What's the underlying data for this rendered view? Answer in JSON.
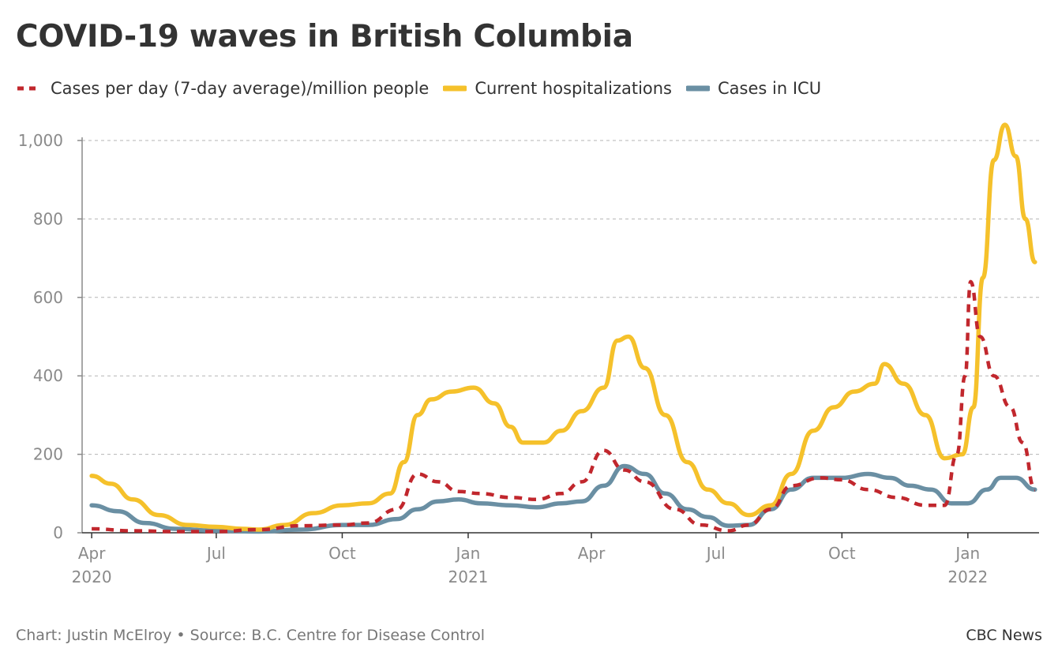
{
  "title": "COVID-19 waves in British Columbia",
  "footer": {
    "credit": "Chart: Justin McElroy • Source: B.C. Centre for Disease Control",
    "brand": "CBC News"
  },
  "colors": {
    "cases": "#c1272d",
    "hospital": "#f5c12b",
    "icu": "#6a8fa3",
    "grid": "#b5b5b5",
    "axis": "#8a8a8a"
  },
  "chart_data": {
    "type": "line",
    "title": "COVID-19 waves in British Columbia",
    "xlabel": "",
    "ylabel": "",
    "ylim": [
      0,
      1000
    ],
    "y_ticks": [
      0,
      200,
      400,
      600,
      800,
      "1,000"
    ],
    "x_range": [
      "2020-03-25",
      "2022-02-22"
    ],
    "x_ticks": [
      {
        "date": "2020-04-01",
        "label": "Apr",
        "sub": "2020"
      },
      {
        "date": "2020-07-01",
        "label": "Jul",
        "sub": ""
      },
      {
        "date": "2020-10-01",
        "label": "Oct",
        "sub": ""
      },
      {
        "date": "2021-01-01",
        "label": "Jan",
        "sub": "2021"
      },
      {
        "date": "2021-04-01",
        "label": "Apr",
        "sub": ""
      },
      {
        "date": "2021-07-01",
        "label": "Jul",
        "sub": ""
      },
      {
        "date": "2021-10-01",
        "label": "Oct",
        "sub": ""
      },
      {
        "date": "2022-01-01",
        "label": "Jan",
        "sub": "2022"
      }
    ],
    "grid": true,
    "legend": "top-left",
    "series": [
      {
        "name": "Cases per day (7-day average)/million people",
        "style": "dashed",
        "points": [
          [
            "2020-04-01",
            10
          ],
          [
            "2020-05-01",
            5
          ],
          [
            "2020-06-01",
            3
          ],
          [
            "2020-07-01",
            3
          ],
          [
            "2020-08-01",
            8
          ],
          [
            "2020-09-01",
            18
          ],
          [
            "2020-10-01",
            20
          ],
          [
            "2020-10-20",
            25
          ],
          [
            "2020-11-10",
            60
          ],
          [
            "2020-11-25",
            150
          ],
          [
            "2020-12-10",
            130
          ],
          [
            "2020-12-25",
            105
          ],
          [
            "2021-01-10",
            100
          ],
          [
            "2021-02-01",
            90
          ],
          [
            "2021-02-20",
            85
          ],
          [
            "2021-03-10",
            100
          ],
          [
            "2021-03-25",
            130
          ],
          [
            "2021-04-10",
            210
          ],
          [
            "2021-04-25",
            160
          ],
          [
            "2021-05-10",
            130
          ],
          [
            "2021-06-01",
            60
          ],
          [
            "2021-06-20",
            20
          ],
          [
            "2021-07-10",
            5
          ],
          [
            "2021-07-25",
            20
          ],
          [
            "2021-08-10",
            60
          ],
          [
            "2021-08-25",
            120
          ],
          [
            "2021-09-15",
            140
          ],
          [
            "2021-10-01",
            135
          ],
          [
            "2021-10-20",
            110
          ],
          [
            "2021-11-10",
            90
          ],
          [
            "2021-12-01",
            70
          ],
          [
            "2021-12-15",
            70
          ],
          [
            "2021-12-24",
            200
          ],
          [
            "2021-12-30",
            400
          ],
          [
            "2022-01-03",
            640
          ],
          [
            "2022-01-10",
            500
          ],
          [
            "2022-01-20",
            400
          ],
          [
            "2022-02-01",
            320
          ],
          [
            "2022-02-10",
            230
          ],
          [
            "2022-02-19",
            110
          ]
        ]
      },
      {
        "name": "Current hospitalizations",
        "style": "solid",
        "points": [
          [
            "2020-04-01",
            145
          ],
          [
            "2020-04-15",
            125
          ],
          [
            "2020-05-01",
            85
          ],
          [
            "2020-05-20",
            45
          ],
          [
            "2020-06-10",
            20
          ],
          [
            "2020-07-01",
            15
          ],
          [
            "2020-07-20",
            10
          ],
          [
            "2020-08-01",
            8
          ],
          [
            "2020-08-20",
            20
          ],
          [
            "2020-09-10",
            50
          ],
          [
            "2020-10-01",
            70
          ],
          [
            "2020-10-20",
            75
          ],
          [
            "2020-11-05",
            100
          ],
          [
            "2020-11-15",
            180
          ],
          [
            "2020-11-25",
            300
          ],
          [
            "2020-12-05",
            340
          ],
          [
            "2020-12-20",
            360
          ],
          [
            "2021-01-05",
            370
          ],
          [
            "2021-01-20",
            330
          ],
          [
            "2021-02-01",
            270
          ],
          [
            "2021-02-10",
            230
          ],
          [
            "2021-02-25",
            230
          ],
          [
            "2021-03-10",
            260
          ],
          [
            "2021-03-25",
            310
          ],
          [
            "2021-04-10",
            370
          ],
          [
            "2021-04-20",
            490
          ],
          [
            "2021-04-28",
            500
          ],
          [
            "2021-05-10",
            420
          ],
          [
            "2021-05-25",
            300
          ],
          [
            "2021-06-10",
            180
          ],
          [
            "2021-06-25",
            110
          ],
          [
            "2021-07-10",
            75
          ],
          [
            "2021-07-25",
            45
          ],
          [
            "2021-08-10",
            70
          ],
          [
            "2021-08-25",
            150
          ],
          [
            "2021-09-10",
            260
          ],
          [
            "2021-09-25",
            320
          ],
          [
            "2021-10-10",
            360
          ],
          [
            "2021-10-25",
            380
          ],
          [
            "2021-11-01",
            430
          ],
          [
            "2021-11-15",
            380
          ],
          [
            "2021-12-01",
            300
          ],
          [
            "2021-12-15",
            190
          ],
          [
            "2021-12-28",
            200
          ],
          [
            "2022-01-05",
            320
          ],
          [
            "2022-01-12",
            650
          ],
          [
            "2022-01-20",
            950
          ],
          [
            "2022-01-28",
            1040
          ],
          [
            "2022-02-05",
            960
          ],
          [
            "2022-02-12",
            800
          ],
          [
            "2022-02-19",
            690
          ]
        ]
      },
      {
        "name": "Cases in ICU",
        "style": "solid",
        "points": [
          [
            "2020-04-01",
            70
          ],
          [
            "2020-04-20",
            55
          ],
          [
            "2020-05-10",
            25
          ],
          [
            "2020-06-01",
            10
          ],
          [
            "2020-07-01",
            5
          ],
          [
            "2020-08-01",
            3
          ],
          [
            "2020-09-01",
            8
          ],
          [
            "2020-10-01",
            20
          ],
          [
            "2020-10-20",
            20
          ],
          [
            "2020-11-10",
            35
          ],
          [
            "2020-11-25",
            60
          ],
          [
            "2020-12-10",
            80
          ],
          [
            "2020-12-25",
            85
          ],
          [
            "2021-01-10",
            75
          ],
          [
            "2021-02-01",
            70
          ],
          [
            "2021-02-20",
            65
          ],
          [
            "2021-03-10",
            75
          ],
          [
            "2021-03-25",
            80
          ],
          [
            "2021-04-10",
            120
          ],
          [
            "2021-04-25",
            170
          ],
          [
            "2021-05-10",
            150
          ],
          [
            "2021-05-25",
            100
          ],
          [
            "2021-06-10",
            60
          ],
          [
            "2021-06-25",
            40
          ],
          [
            "2021-07-10",
            18
          ],
          [
            "2021-07-25",
            20
          ],
          [
            "2021-08-10",
            60
          ],
          [
            "2021-08-25",
            110
          ],
          [
            "2021-09-10",
            140
          ],
          [
            "2021-10-01",
            140
          ],
          [
            "2021-10-20",
            150
          ],
          [
            "2021-11-05",
            140
          ],
          [
            "2021-11-20",
            120
          ],
          [
            "2021-12-05",
            110
          ],
          [
            "2021-12-20",
            75
          ],
          [
            "2022-01-01",
            75
          ],
          [
            "2022-01-15",
            110
          ],
          [
            "2022-01-25",
            140
          ],
          [
            "2022-02-05",
            140
          ],
          [
            "2022-02-19",
            110
          ]
        ]
      }
    ]
  }
}
